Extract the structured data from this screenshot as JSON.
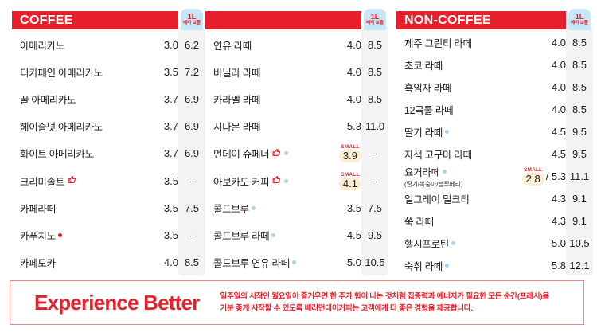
{
  "palette": {
    "banner_red": "#e8202b",
    "badge_blue": "#c7e6f7",
    "strip_gray": "#f3f3f4",
    "small_pill_cream": "#fdeed3",
    "dot_blue": "#a9d4f1",
    "dot_red": "#e8202b",
    "text_dark": "#1d1d1f"
  },
  "bottle_badge": {
    "line1": "1L",
    "line2": "베리 보틀"
  },
  "columns": [
    {
      "title": "COFFEE",
      "items": [
        {
          "name": "아메리카노",
          "price": "3.0",
          "bottle": "6.2"
        },
        {
          "name": "디카페인 아메리카노",
          "price": "3.5",
          "bottle": "7.2"
        },
        {
          "name": "꿀 아메리카노",
          "price": "3.7",
          "bottle": "6.9"
        },
        {
          "name": "헤이즐넛 아메리카노",
          "price": "3.7",
          "bottle": "6.9"
        },
        {
          "name": "화이트 아메리카노",
          "price": "3.7",
          "bottle": "6.9"
        },
        {
          "name": "크리미솔트",
          "markers": [
            "thumb"
          ],
          "price": "3.5",
          "bottle": "-"
        },
        {
          "name": "카페라떼",
          "price": "3.5",
          "bottle": "7.5"
        },
        {
          "name": "카푸치노",
          "markers": [
            "red-dot"
          ],
          "price": "3.5",
          "bottle": "-"
        },
        {
          "name": "카페모카",
          "price": "4.0",
          "bottle": "8.5"
        }
      ]
    },
    {
      "title": "",
      "items": [
        {
          "name": "연유 라떼",
          "price": "4.0",
          "bottle": "8.5"
        },
        {
          "name": "바닐라 라떼",
          "price": "4.0",
          "bottle": "8.5"
        },
        {
          "name": "카라멜 라떼",
          "price": "4.0",
          "bottle": "8.5"
        },
        {
          "name": "시나몬 라떼",
          "price": "5.3",
          "bottle": "11.0"
        },
        {
          "name": "먼데이 슈페너",
          "markers": [
            "thumb",
            "blue-dot"
          ],
          "small_label": "SMALL",
          "small_price": "3.9",
          "price": "",
          "bottle": "-"
        },
        {
          "name": "아보카도 커피",
          "markers": [
            "thumb",
            "blue-dot"
          ],
          "small_label": "SMALL",
          "small_price": "4.1",
          "price": "",
          "bottle": "-"
        },
        {
          "name": "콜드브루",
          "markers": [
            "blue-dot"
          ],
          "price": "3.5",
          "bottle": "7.5"
        },
        {
          "name": "콜드브루 라떼",
          "markers": [
            "blue-dot"
          ],
          "price": "4.5",
          "bottle": "9.5"
        },
        {
          "name": "콜드브루 연유 라떼",
          "markers": [
            "blue-dot"
          ],
          "price": "5.0",
          "bottle": "10.5"
        }
      ]
    },
    {
      "title": "NON-COFFEE",
      "items": [
        {
          "name": "제주 그린티 라떼",
          "price": "4.0",
          "bottle": "8.5"
        },
        {
          "name": "초코 라떼",
          "price": "4.0",
          "bottle": "8.5"
        },
        {
          "name": "흑임자 라떼",
          "price": "4.0",
          "bottle": "8.5"
        },
        {
          "name": "12곡물 라떼",
          "price": "4.0",
          "bottle": "8.5"
        },
        {
          "name": "딸기 라떼",
          "markers": [
            "blue-dot"
          ],
          "price": "4.5",
          "bottle": "9.5"
        },
        {
          "name": "자색 고구마 라떼",
          "price": "4.5",
          "bottle": "9.5"
        },
        {
          "name": "요거라떼",
          "subtitle": "(딸기/복숭아/블루베리)",
          "markers": [
            "blue-dot"
          ],
          "small_label": "SMALL",
          "small_price": "2.8",
          "price": "/ 5.3",
          "bottle": "11.1"
        },
        {
          "name": "얼그레이 밀크티",
          "price": "4.3",
          "bottle": "9.1"
        },
        {
          "name": "쑥 라떼",
          "price": "4.3",
          "bottle": "9.1"
        },
        {
          "name": "헬시프로틴",
          "markers": [
            "blue-dot"
          ],
          "price": "5.0",
          "bottle": "10.5"
        },
        {
          "name": "숙취 라떼",
          "markers": [
            "blue-dot"
          ],
          "price": "5.8",
          "bottle": "12.1"
        }
      ]
    }
  ],
  "footer": {
    "headline": "Experience Better",
    "description_line1": "일주일의 시작인 월요일이 즐거우면 한 주가 힘이 나는 것처럼 집중력과 에너지가 필요한 모든 순간(프레시)을",
    "description_line2": "기분 좋게 시작할 수 있도록 베러먼데이커피는 고객에게 더 좋은 경험을 제공합니다."
  }
}
